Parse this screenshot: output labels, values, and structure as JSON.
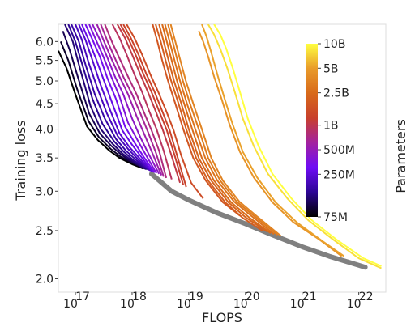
{
  "chart_data": {
    "type": "line",
    "title": "",
    "xlabel": "FLOPS",
    "ylabel": "Training loss",
    "x_scale": "log",
    "y_scale": "log",
    "xlim": [
      5e+16,
      3e+22
    ],
    "ylim": [
      1.88,
      6.5
    ],
    "x_ticks": [
      {
        "value": 1e+17,
        "base": "10",
        "exp": "17"
      },
      {
        "value": 1e+18,
        "base": "10",
        "exp": "18"
      },
      {
        "value": 1e+19,
        "base": "10",
        "exp": "19"
      },
      {
        "value": 1e+20,
        "base": "10",
        "exp": "20"
      },
      {
        "value": 1e+21,
        "base": "10",
        "exp": "21"
      },
      {
        "value": 1e+22,
        "base": "10",
        "exp": "22"
      }
    ],
    "y_ticks": [
      {
        "value": 2.0,
        "label": "2.0"
      },
      {
        "value": 2.5,
        "label": "2.5"
      },
      {
        "value": 3.0,
        "label": "3.0"
      },
      {
        "value": 3.5,
        "label": "3.5"
      },
      {
        "value": 4.0,
        "label": "4.0"
      },
      {
        "value": 4.5,
        "label": "4.5"
      },
      {
        "value": 5.0,
        "label": "5.0"
      },
      {
        "value": 5.5,
        "label": "5.5"
      },
      {
        "value": 6.0,
        "label": "6.0"
      }
    ],
    "grid": false,
    "colorbar": {
      "label": "Parameters",
      "scale": "log",
      "range": [
        75000000,
        10000000000
      ],
      "colormap": "plasma-like",
      "colors": [
        "#000000",
        "#2c0594",
        "#6f0cf5",
        "#a3229f",
        "#c8402c",
        "#d86a1a",
        "#e99b2a",
        "#ffff40"
      ],
      "ticks": [
        {
          "value": 75000000,
          "label": "75M"
        },
        {
          "value": 250000000,
          "label": "250M"
        },
        {
          "value": 500000000,
          "label": "500M"
        },
        {
          "value": 1000000000,
          "label": "1B"
        },
        {
          "value": 2500000000,
          "label": "2.5B"
        },
        {
          "value": 5000000000,
          "label": "5B"
        },
        {
          "value": 10000000000,
          "label": "10B"
        }
      ]
    },
    "frontier": {
      "color": "#808080",
      "points": [
        [
          2.2e+18,
          3.25
        ],
        [
          5e+18,
          3.0
        ],
        [
          1e+19,
          2.88
        ],
        [
          3e+19,
          2.72
        ],
        [
          1e+20,
          2.58
        ],
        [
          3e+20,
          2.45
        ],
        [
          1e+21,
          2.32
        ],
        [
          3e+21,
          2.22
        ],
        [
          1e+22,
          2.13
        ],
        [
          1.3e+22,
          2.11
        ]
      ]
    },
    "series": [
      {
        "params": 75000000,
        "x": [
          5e+16,
          7e+16,
          1e+17,
          1.6e+17,
          2.5e+17,
          4e+17,
          6e+17,
          1e+18,
          1.6e+18
        ],
        "y": [
          5.75,
          5.3,
          4.7,
          4.05,
          3.8,
          3.62,
          3.5,
          3.4,
          3.33
        ]
      },
      {
        "params": 90000000,
        "x": [
          5.5e+16,
          7.5e+16,
          1.05e+17,
          1.7e+17,
          2.6e+17,
          4.2e+17,
          6.3e+17,
          1e+18,
          1.7e+18
        ],
        "y": [
          6.0,
          5.5,
          4.85,
          4.15,
          3.85,
          3.65,
          3.52,
          3.42,
          3.33
        ]
      },
      {
        "params": 110000000,
        "x": [
          6e+16,
          8e+16,
          1.1e+17,
          1.75e+17,
          2.7e+17,
          4.3e+17,
          6.5e+17,
          1e+18,
          1.75e+18
        ],
        "y": [
          6.3,
          5.75,
          5.1,
          4.3,
          3.92,
          3.7,
          3.55,
          3.43,
          3.33
        ]
      },
      {
        "params": 130000000,
        "x": [
          6.5e+16,
          9e+16,
          1.2e+17,
          1.85e+17,
          2.8e+17,
          4.5e+17,
          6.8e+17,
          1.05e+18,
          1.8e+18
        ],
        "y": [
          6.5,
          6.0,
          5.3,
          4.45,
          4.0,
          3.74,
          3.57,
          3.44,
          3.32
        ]
      },
      {
        "params": 150000000,
        "x": [
          7.5e+16,
          1e+17,
          1.35e+17,
          2e+17,
          3e+17,
          4.8e+17,
          7.2e+17,
          1.1e+18,
          1.9e+18
        ],
        "y": [
          6.5,
          6.0,
          5.35,
          4.6,
          4.1,
          3.78,
          3.6,
          3.45,
          3.32
        ]
      },
      {
        "params": 170000000,
        "x": [
          8.5e+16,
          1.15e+17,
          1.5e+17,
          2.2e+17,
          3.3e+17,
          5.2e+17,
          7.8e+17,
          1.2e+18,
          2e+18
        ],
        "y": [
          6.5,
          6.0,
          5.4,
          4.7,
          4.2,
          3.82,
          3.62,
          3.46,
          3.31
        ]
      },
      {
        "params": 200000000,
        "x": [
          1e+17,
          1.3e+17,
          1.7e+17,
          2.5e+17,
          3.6e+17,
          5.6e+17,
          8.5e+17,
          1.3e+18,
          2.1e+18
        ],
        "y": [
          6.5,
          6.05,
          5.45,
          4.8,
          4.3,
          3.87,
          3.65,
          3.47,
          3.3
        ]
      },
      {
        "params": 230000000,
        "x": [
          1.15e+17,
          1.5e+17,
          2e+17,
          2.8e+17,
          4e+17,
          6e+17,
          9e+17,
          1.4e+18,
          2.2e+18
        ],
        "y": [
          6.5,
          6.05,
          5.5,
          4.9,
          4.4,
          3.92,
          3.68,
          3.48,
          3.29
        ]
      },
      {
        "params": 270000000,
        "x": [
          1.3e+17,
          1.7e+17,
          2.3e+17,
          3.2e+17,
          4.5e+17,
          6.7e+17,
          1e+18,
          1.5e+18,
          2.3e+18
        ],
        "y": [
          6.5,
          6.05,
          5.55,
          5.0,
          4.5,
          3.98,
          3.72,
          3.5,
          3.28
        ]
      },
      {
        "params": 320000000,
        "x": [
          1.5e+17,
          2e+17,
          2.7e+17,
          3.7e+17,
          5.2e+17,
          7.5e+17,
          1.1e+18,
          1.6e+18,
          2.5e+18
        ],
        "y": [
          6.5,
          6.05,
          5.6,
          5.05,
          4.6,
          4.05,
          3.76,
          3.52,
          3.27
        ]
      },
      {
        "params": 380000000,
        "x": [
          1.75e+17,
          2.3e+17,
          3.1e+17,
          4.3e+17,
          6e+17,
          8.5e+17,
          1.25e+18,
          1.8e+18,
          2.7e+18
        ],
        "y": [
          6.5,
          6.05,
          5.6,
          5.1,
          4.65,
          4.12,
          3.8,
          3.53,
          3.26
        ]
      },
      {
        "params": 450000000,
        "x": [
          2e+17,
          2.7e+17,
          3.6e+17,
          5e+17,
          7e+17,
          1e+18,
          1.4e+18,
          2e+18,
          3e+18
        ],
        "y": [
          6.5,
          6.05,
          5.6,
          5.1,
          4.7,
          4.2,
          3.85,
          3.55,
          3.25
        ]
      },
      {
        "params": 550000000,
        "x": [
          2.4e+17,
          3.2e+17,
          4.3e+17,
          6e+17,
          8.5e+17,
          1.2e+18,
          1.65e+18,
          2.3e+18,
          3.3e+18
        ],
        "y": [
          6.5,
          6.0,
          5.55,
          5.1,
          4.7,
          4.25,
          3.9,
          3.57,
          3.23
        ]
      },
      {
        "params": 650000000,
        "x": [
          2.8e+17,
          3.7e+17,
          5e+17,
          7e+17,
          1e+18,
          1.4e+18,
          1.9e+18,
          2.6e+18,
          3.6e+18
        ],
        "y": [
          6.5,
          6.0,
          5.55,
          5.1,
          4.7,
          4.3,
          3.95,
          3.6,
          3.21
        ]
      },
      {
        "params": 750000000,
        "x": [
          3.3e+17,
          4.4e+17,
          6e+17,
          8.5e+17,
          1.2e+18,
          1.65e+18,
          2.2e+18,
          3e+18,
          4e+18
        ],
        "y": [
          6.5,
          6.0,
          5.55,
          5.1,
          4.7,
          4.3,
          3.98,
          3.62,
          3.19
        ]
      },
      {
        "params": 900000000,
        "x": [
          4.5e+17,
          6e+17,
          8e+17,
          1.1e+18,
          1.5e+18,
          2e+18,
          2.7e+18,
          3.6e+18,
          5e+18
        ],
        "y": [
          6.5,
          6.1,
          5.65,
          5.15,
          4.75,
          4.35,
          4.0,
          3.62,
          3.17
        ]
      },
      {
        "params": 1050000000,
        "x": [
          5.5e+17,
          7.5e+17,
          1e+18,
          1.4e+18,
          1.9e+18,
          2.6e+18,
          3.5e+18,
          4.8e+18,
          7e+18
        ],
        "y": [
          6.5,
          6.1,
          5.65,
          5.15,
          4.75,
          4.35,
          3.98,
          3.58,
          3.12
        ]
      },
      {
        "params": 1200000000,
        "x": [
          6.2e+17,
          8.5e+17,
          1.15e+18,
          1.6e+18,
          2.2e+18,
          3e+18,
          4.1e+18,
          5.6e+18,
          8e+18
        ],
        "y": [
          6.5,
          6.1,
          5.65,
          5.15,
          4.75,
          4.35,
          3.98,
          3.55,
          3.09
        ]
      },
      {
        "params": 1300000000,
        "x": [
          7e+17,
          9.5e+17,
          1.3e+18,
          1.8e+18,
          2.5e+18,
          3.4e+18,
          4.6e+18,
          6.3e+18,
          9e+18
        ],
        "y": [
          6.5,
          6.1,
          5.65,
          5.15,
          4.75,
          4.35,
          3.98,
          3.52,
          3.06
        ]
      },
      {
        "params": 1500000000,
        "x": [
          8e+17,
          1.1e+18,
          1.5e+18,
          2.1e+18,
          2.9e+18,
          4e+18,
          5.4e+18,
          7.3e+18,
          1.1e+19,
          1.8e+19
        ],
        "y": [
          6.5,
          6.1,
          5.65,
          5.15,
          4.75,
          4.35,
          3.98,
          3.55,
          3.12,
          2.9
        ]
      },
      {
        "params": 1800000000,
        "x": [
          2.3e+18,
          2.8e+18,
          3.4e+18,
          4.3e+18,
          5.8e+18,
          8e+18,
          1.2e+19,
          2e+19,
          4e+19,
          8e+19
        ],
        "y": [
          6.5,
          6.0,
          5.5,
          5.0,
          4.5,
          4.0,
          3.5,
          3.15,
          2.85,
          2.68
        ]
      },
      {
        "params": 2000000000,
        "x": [
          2.6e+18,
          3.2e+18,
          3.9e+18,
          4.9e+18,
          6.6e+18,
          9e+18,
          1.35e+19,
          2.2e+19,
          4.4e+19,
          9e+19,
          2e+20
        ],
        "y": [
          6.5,
          6.0,
          5.5,
          5.0,
          4.5,
          4.0,
          3.5,
          3.15,
          2.85,
          2.65,
          2.5
        ]
      },
      {
        "params": 2200000000,
        "x": [
          3e+18,
          3.6e+18,
          4.4e+18,
          5.5e+18,
          7.4e+18,
          1e+19,
          1.5e+19,
          2.5e+19,
          5e+19,
          1e+20,
          2.4e+20
        ],
        "y": [
          6.5,
          6.0,
          5.5,
          5.0,
          4.5,
          4.0,
          3.5,
          3.15,
          2.85,
          2.66,
          2.49
        ]
      },
      {
        "params": 2500000000,
        "x": [
          3.4e+18,
          4.1e+18,
          5e+18,
          6.2e+18,
          8.3e+18,
          1.15e+19,
          1.7e+19,
          2.8e+19,
          5.6e+19,
          1.15e+20,
          2.8e+20
        ],
        "y": [
          6.5,
          6.0,
          5.5,
          5.0,
          4.5,
          4.0,
          3.5,
          3.15,
          2.85,
          2.66,
          2.47
        ]
      },
      {
        "params": 2800000000,
        "x": [
          3.8e+18,
          4.6e+18,
          5.6e+18,
          7e+18,
          9.3e+18,
          1.3e+19,
          1.95e+19,
          3.2e+19,
          6.3e+19,
          1.3e+20,
          3.2e+20
        ],
        "y": [
          6.5,
          6.0,
          5.5,
          5.0,
          4.5,
          4.0,
          3.5,
          3.15,
          2.86,
          2.67,
          2.46
        ]
      },
      {
        "params": 3200000000,
        "x": [
          4.3e+18,
          5.2e+18,
          6.3e+18,
          7.9e+18,
          1.05e+19,
          1.5e+19,
          2.2e+19,
          3.6e+19,
          7e+19,
          1.45e+20,
          3.7e+20
        ],
        "y": [
          6.5,
          6.0,
          5.5,
          5.0,
          4.5,
          4.0,
          3.5,
          3.15,
          2.86,
          2.67,
          2.45
        ]
      },
      {
        "params": 3600000000,
        "x": [
          4.8e+18,
          5.8e+18,
          7.1e+18,
          8.9e+18,
          1.2e+19,
          1.7e+19,
          2.5e+19,
          4e+19,
          7.8e+19,
          1.6e+20,
          4.2e+20
        ],
        "y": [
          6.5,
          6.0,
          5.5,
          5.0,
          4.5,
          4.0,
          3.5,
          3.15,
          2.86,
          2.67,
          2.44
        ]
      },
      {
        "params": 4500000000,
        "x": [
          1.5e+19,
          1.8e+19,
          2.2e+19,
          2.8e+19,
          3.8e+19,
          5.2e+19,
          8e+19,
          1.4e+20,
          3e+20,
          7e+20,
          2e+21,
          5e+21
        ],
        "y": [
          6.3,
          6.0,
          5.6,
          5.1,
          4.6,
          4.1,
          3.6,
          3.2,
          2.85,
          2.6,
          2.4,
          2.22
        ]
      },
      {
        "params": 5200000000,
        "x": [
          1.7e+19,
          2.05e+19,
          2.5e+19,
          3.2e+19,
          4.3e+19,
          5.9e+19,
          9e+19,
          1.6e+20,
          3.4e+20,
          8e+20,
          2.3e+21,
          5.5e+21
        ],
        "y": [
          6.5,
          6.15,
          5.7,
          5.15,
          4.6,
          4.1,
          3.6,
          3.2,
          2.85,
          2.6,
          2.38,
          2.22
        ]
      },
      {
        "params": 8000000000,
        "x": [
          2.2e+19,
          2.8e+19,
          3.6e+19,
          4.8e+19,
          6.5e+19,
          9e+19,
          1.4e+20,
          2.5e+20,
          5.5e+20,
          1.3e+21,
          3.5e+21,
          1e+22,
          2.5e+22
        ],
        "y": [
          6.5,
          6.2,
          5.8,
          5.3,
          4.75,
          4.2,
          3.7,
          3.25,
          2.9,
          2.62,
          2.4,
          2.2,
          2.1
        ]
      },
      {
        "params": 10000000000,
        "x": [
          2.8e+19,
          3.6e+19,
          4.6e+19,
          6e+19,
          8e+19,
          1.1e+20,
          1.7e+20,
          3e+20,
          6.5e+20,
          1.5e+21,
          4e+21,
          1.2e+22,
          2.5e+22
        ],
        "y": [
          6.5,
          6.2,
          5.8,
          5.3,
          4.75,
          4.2,
          3.7,
          3.25,
          2.9,
          2.62,
          2.4,
          2.2,
          2.12
        ]
      }
    ]
  }
}
